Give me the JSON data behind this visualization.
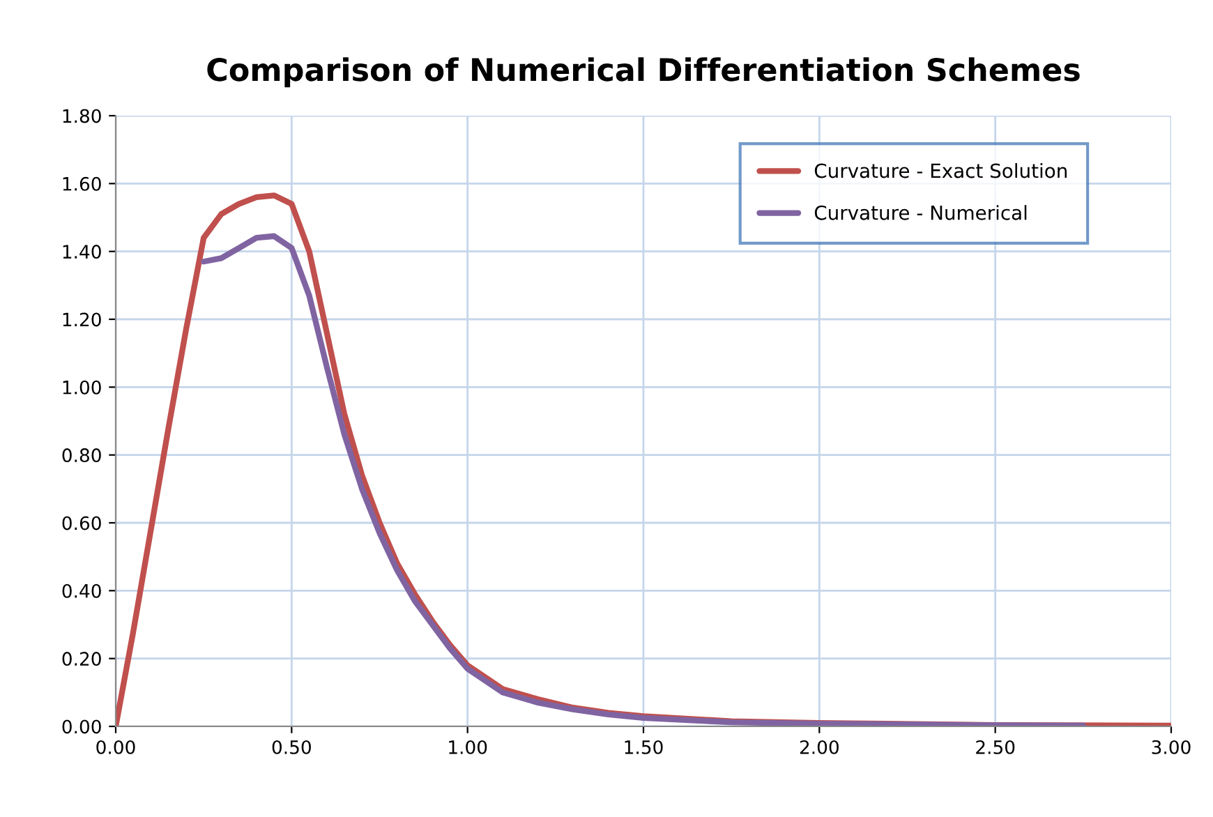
{
  "chart_data": {
    "type": "line",
    "title": "Comparison of Numerical Differentiation Schemes",
    "series": [
      {
        "name": "Curvature - Exact Solution",
        "color": "#c0504d",
        "x": [
          0,
          0.05,
          0.1,
          0.15,
          0.2,
          0.25,
          0.3,
          0.35,
          0.4,
          0.45,
          0.5,
          0.55,
          0.6,
          0.65,
          0.7,
          0.75,
          0.8,
          0.85,
          0.9,
          0.95,
          1.0,
          1.1,
          1.2,
          1.3,
          1.4,
          1.5,
          1.75,
          2.0,
          2.5,
          3.0
        ],
        "values": [
          0,
          0.28,
          0.58,
          0.88,
          1.17,
          1.44,
          1.51,
          1.54,
          1.56,
          1.565,
          1.54,
          1.4,
          1.16,
          0.92,
          0.74,
          0.6,
          0.48,
          0.39,
          0.31,
          0.24,
          0.18,
          0.11,
          0.08,
          0.055,
          0.04,
          0.03,
          0.015,
          0.01,
          0.004,
          0.002
        ]
      },
      {
        "name": "Curvature - Numerical",
        "color": "#8064a2",
        "x": [
          0.25,
          0.3,
          0.35,
          0.4,
          0.45,
          0.5,
          0.55,
          0.6,
          0.65,
          0.7,
          0.75,
          0.8,
          0.85,
          0.9,
          0.95,
          1.0,
          1.1,
          1.2,
          1.3,
          1.4,
          1.5,
          1.75,
          2.0,
          2.5,
          2.75
        ],
        "values": [
          1.37,
          1.38,
          1.41,
          1.44,
          1.445,
          1.41,
          1.27,
          1.06,
          0.86,
          0.7,
          0.57,
          0.46,
          0.37,
          0.3,
          0.23,
          0.17,
          0.1,
          0.07,
          0.05,
          0.035,
          0.025,
          0.012,
          0.008,
          0.003,
          0.002
        ]
      }
    ],
    "xlim": [
      0,
      3
    ],
    "xticks": [
      {
        "value": 0,
        "label": "0.00"
      },
      {
        "value": 0.5,
        "label": "0.50"
      },
      {
        "value": 1,
        "label": "1.00"
      },
      {
        "value": 1.5,
        "label": "1.50"
      },
      {
        "value": 2,
        "label": "2.00"
      },
      {
        "value": 2.5,
        "label": "2.50"
      },
      {
        "value": 3,
        "label": "3.00"
      }
    ],
    "ylim": [
      0,
      1.8
    ],
    "yticks": [
      {
        "value": 0,
        "label": "0.00"
      },
      {
        "value": 0.2,
        "label": "0.20"
      },
      {
        "value": 0.4,
        "label": "0.40"
      },
      {
        "value": 0.6,
        "label": "0.60"
      },
      {
        "value": 0.8,
        "label": "0.80"
      },
      {
        "value": 1.0,
        "label": "1.00"
      },
      {
        "value": 1.2,
        "label": "1.20"
      },
      {
        "value": 1.4,
        "label": "1.40"
      },
      {
        "value": 1.6,
        "label": "1.60"
      },
      {
        "value": 1.8,
        "label": "1.80"
      }
    ],
    "grid": true,
    "legend": "top right",
    "marker": "none",
    "line_style": "solid"
  }
}
